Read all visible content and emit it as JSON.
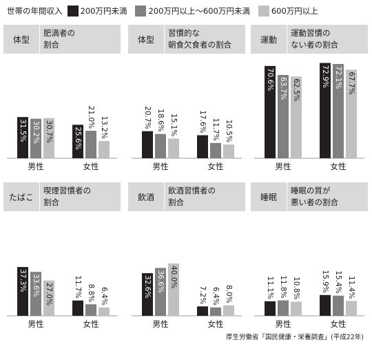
{
  "legend": {
    "title": "世帯の年間収入",
    "items": [
      {
        "label": "200万円未満",
        "color": "#231f20"
      },
      {
        "label": "200万円以上～600万円未満",
        "color": "#808080"
      },
      {
        "label": "600万円以上",
        "color": "#c0c0c0"
      }
    ]
  },
  "chart_data": [
    {
      "type": "bar",
      "tag": "体型",
      "title": "肥満者の\n割合",
      "categories": [
        "男性",
        "女性"
      ],
      "series": [
        {
          "values": [
            31.5,
            25.6
          ]
        },
        {
          "values": [
            30.2,
            21.0
          ]
        },
        {
          "values": [
            30.7,
            13.2
          ]
        }
      ],
      "labels": [
        [
          "31.5%",
          "25.6%"
        ],
        [
          "30.2%",
          "21.0%"
        ],
        [
          "30.7%",
          "13.2%"
        ]
      ]
    },
    {
      "type": "bar",
      "tag": "体型",
      "title": "習慣的な\n朝食欠食者の割合",
      "categories": [
        "男性",
        "女性"
      ],
      "series": [
        {
          "values": [
            20.7,
            17.6
          ]
        },
        {
          "values": [
            18.6,
            11.7
          ]
        },
        {
          "values": [
            15.1,
            10.5
          ]
        }
      ],
      "labels": [
        [
          "20.7%",
          "17.6%"
        ],
        [
          "18.6%",
          "11.7%"
        ],
        [
          "15.1%",
          "10.5%"
        ]
      ]
    },
    {
      "type": "bar",
      "tag": "運動",
      "title": "運動習慣の\nない者の割合",
      "categories": [
        "男性",
        "女性"
      ],
      "series": [
        {
          "values": [
            70.6,
            72.9
          ]
        },
        {
          "values": [
            63.7,
            72.1
          ]
        },
        {
          "values": [
            62.5,
            67.7
          ]
        }
      ],
      "labels": [
        [
          "70.6%",
          "72.9%"
        ],
        [
          "63.7%",
          "72.1%"
        ],
        [
          "62.5%",
          "67.7%"
        ]
      ]
    },
    {
      "type": "bar",
      "tag": "たばこ",
      "title": "喫煙習慣者の\n割合",
      "categories": [
        "男性",
        "女性"
      ],
      "series": [
        {
          "values": [
            37.3,
            11.7
          ]
        },
        {
          "values": [
            33.6,
            8.8
          ]
        },
        {
          "values": [
            27.0,
            6.4
          ]
        }
      ],
      "labels": [
        [
          "37.3%",
          "11.7%"
        ],
        [
          "33.6%",
          "8.8%"
        ],
        [
          "27.0%",
          "6.4%"
        ]
      ]
    },
    {
      "type": "bar",
      "tag": "飲酒",
      "title": "飲酒習慣者の\n割合",
      "categories": [
        "男性",
        "女性"
      ],
      "series": [
        {
          "values": [
            32.6,
            7.2
          ]
        },
        {
          "values": [
            36.6,
            6.4
          ]
        },
        {
          "values": [
            40.0,
            8.0
          ]
        }
      ],
      "labels": [
        [
          "32.6%",
          "7.2%"
        ],
        [
          "36.6%",
          "6.4%"
        ],
        [
          "40.0%",
          "8.0%"
        ]
      ]
    },
    {
      "type": "bar",
      "tag": "睡眠",
      "title": "睡眠の質が\n悪い者の割合",
      "categories": [
        "男性",
        "女性"
      ],
      "series": [
        {
          "values": [
            11.1,
            15.9
          ]
        },
        {
          "values": [
            11.8,
            15.4
          ]
        },
        {
          "values": [
            10.8,
            11.4
          ]
        }
      ],
      "labels": [
        [
          "11.1%",
          "15.9%"
        ],
        [
          "11.8%",
          "15.4%"
        ],
        [
          "10.8%",
          "11.4%"
        ]
      ]
    }
  ],
  "source": "厚生労働省「国民健康・栄養調査」(平成22年)"
}
